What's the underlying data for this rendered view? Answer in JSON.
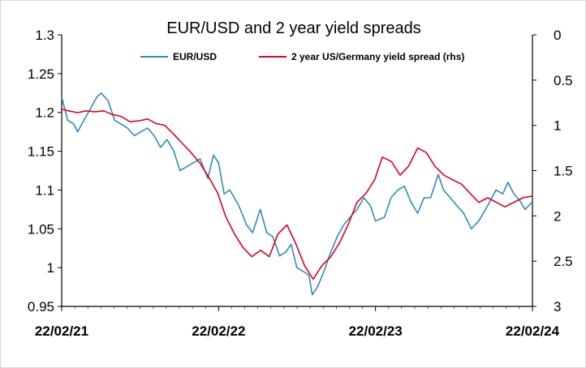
{
  "chart_data": {
    "type": "line",
    "title": "EUR/USD and 2 year yield spreads",
    "legend_position": "top-center",
    "grid": false,
    "x_range": [
      "2021-02-22",
      "2024-02-22"
    ],
    "x_ticks": [
      "22/02/21",
      "22/02/22",
      "22/02/23",
      "22/02/24"
    ],
    "y_left": {
      "range": [
        0.95,
        1.3
      ],
      "ticks": [
        "0.95",
        "1",
        "1.05",
        "1.1",
        "1.15",
        "1.2",
        "1.25",
        "1.3"
      ],
      "inverted": false
    },
    "y_right": {
      "range": [
        0,
        3
      ],
      "ticks": [
        "0",
        "0.5",
        "1",
        "1.5",
        "2",
        "2.5",
        "3"
      ],
      "inverted": true
    },
    "series": [
      {
        "name": "EUR/USD",
        "axis": "left",
        "color": "#2e8db6",
        "x": [
          "2021-02-22",
          "2021-03-08",
          "2021-03-22",
          "2021-03-31",
          "2021-04-15",
          "2021-04-30",
          "2021-05-15",
          "2021-05-25",
          "2021-06-10",
          "2021-06-25",
          "2021-07-10",
          "2021-07-25",
          "2021-08-10",
          "2021-08-25",
          "2021-09-10",
          "2021-09-25",
          "2021-10-10",
          "2021-10-25",
          "2021-11-10",
          "2021-11-24",
          "2021-12-10",
          "2021-12-25",
          "2022-01-10",
          "2022-01-28",
          "2022-02-10",
          "2022-02-22",
          "2022-03-07",
          "2022-03-20",
          "2022-04-10",
          "2022-04-28",
          "2022-05-12",
          "2022-05-30",
          "2022-06-14",
          "2022-06-28",
          "2022-07-14",
          "2022-07-28",
          "2022-08-10",
          "2022-08-23",
          "2022-09-07",
          "2022-09-20",
          "2022-09-28",
          "2022-10-10",
          "2022-10-25",
          "2022-11-10",
          "2022-11-25",
          "2022-12-10",
          "2022-12-25",
          "2023-01-10",
          "2023-01-26",
          "2023-02-10",
          "2023-02-22",
          "2023-03-15",
          "2023-03-30",
          "2023-04-15",
          "2023-04-30",
          "2023-05-15",
          "2023-05-31",
          "2023-06-15",
          "2023-06-30",
          "2023-07-18",
          "2023-07-30",
          "2023-08-15",
          "2023-08-30",
          "2023-09-15",
          "2023-10-03",
          "2023-10-20",
          "2023-11-05",
          "2023-11-20",
          "2023-11-29",
          "2023-12-15",
          "2023-12-27",
          "2024-01-10",
          "2024-01-25",
          "2024-02-05",
          "2024-02-22"
        ],
        "y": [
          1.22,
          1.19,
          1.185,
          1.175,
          1.19,
          1.205,
          1.22,
          1.225,
          1.215,
          1.19,
          1.185,
          1.18,
          1.17,
          1.175,
          1.18,
          1.17,
          1.155,
          1.165,
          1.15,
          1.125,
          1.13,
          1.135,
          1.14,
          1.115,
          1.145,
          1.135,
          1.095,
          1.1,
          1.08,
          1.055,
          1.045,
          1.075,
          1.045,
          1.04,
          1.015,
          1.02,
          1.03,
          1.0,
          0.995,
          0.99,
          0.965,
          0.975,
          0.995,
          1.02,
          1.04,
          1.055,
          1.065,
          1.075,
          1.09,
          1.08,
          1.06,
          1.065,
          1.09,
          1.1,
          1.105,
          1.085,
          1.07,
          1.09,
          1.09,
          1.12,
          1.1,
          1.09,
          1.08,
          1.07,
          1.05,
          1.06,
          1.075,
          1.09,
          1.1,
          1.095,
          1.11,
          1.095,
          1.085,
          1.075,
          1.085
        ]
      },
      {
        "name": "2 year US/Germany yield spread (rhs)",
        "axis": "right",
        "color": "#e0001b",
        "x": [
          "2021-02-22",
          "2021-03-10",
          "2021-03-31",
          "2021-04-20",
          "2021-05-10",
          "2021-05-31",
          "2021-06-20",
          "2021-07-10",
          "2021-07-31",
          "2021-08-20",
          "2021-09-10",
          "2021-09-30",
          "2021-10-20",
          "2021-11-10",
          "2021-11-30",
          "2021-12-20",
          "2022-01-10",
          "2022-01-31",
          "2022-02-20",
          "2022-03-10",
          "2022-03-31",
          "2022-04-20",
          "2022-05-10",
          "2022-05-31",
          "2022-06-20",
          "2022-07-10",
          "2022-07-31",
          "2022-08-20",
          "2022-09-10",
          "2022-09-30",
          "2022-10-20",
          "2022-11-10",
          "2022-11-30",
          "2022-12-20",
          "2023-01-10",
          "2023-01-31",
          "2023-02-20",
          "2023-03-10",
          "2023-03-31",
          "2023-04-20",
          "2023-05-10",
          "2023-05-31",
          "2023-06-20",
          "2023-07-10",
          "2023-07-31",
          "2023-08-20",
          "2023-09-10",
          "2023-09-30",
          "2023-10-20",
          "2023-11-10",
          "2023-11-30",
          "2023-12-20",
          "2024-01-10",
          "2024-01-31",
          "2024-02-22"
        ],
        "y": [
          0.82,
          0.84,
          0.86,
          0.84,
          0.85,
          0.84,
          0.88,
          0.9,
          0.96,
          0.95,
          0.93,
          0.98,
          1.0,
          1.1,
          1.2,
          1.3,
          1.42,
          1.58,
          1.75,
          2.0,
          2.2,
          2.35,
          2.45,
          2.38,
          2.45,
          2.2,
          2.1,
          2.3,
          2.55,
          2.7,
          2.55,
          2.45,
          2.3,
          2.1,
          1.85,
          1.75,
          1.6,
          1.35,
          1.4,
          1.55,
          1.45,
          1.25,
          1.3,
          1.45,
          1.55,
          1.6,
          1.65,
          1.75,
          1.85,
          1.8,
          1.85,
          1.9,
          1.85,
          1.8,
          1.78
        ]
      }
    ]
  }
}
